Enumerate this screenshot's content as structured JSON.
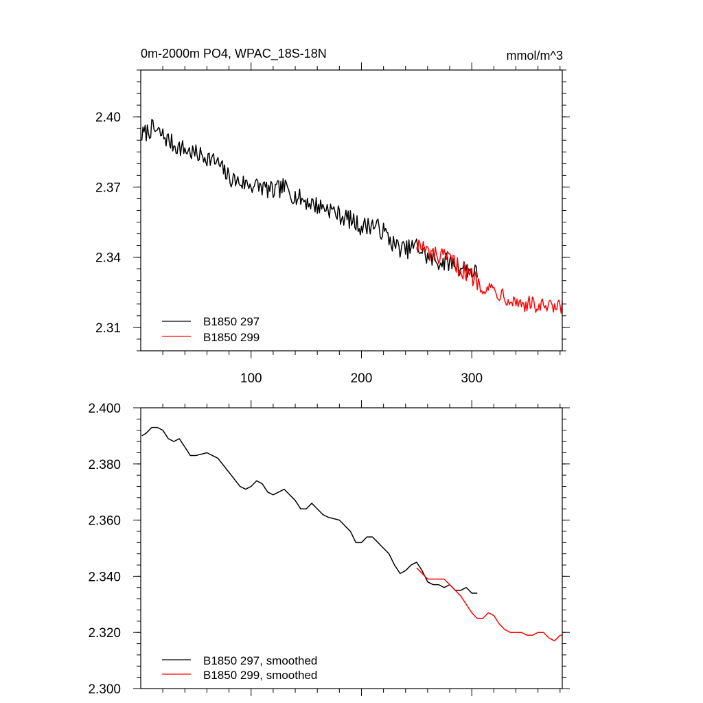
{
  "chart_data": [
    {
      "type": "line",
      "title": "0m-2000m PO4, WPAC_18S-18N",
      "units": "mmol/m^3",
      "xlim": [
        0,
        382
      ],
      "ylim": [
        2.3,
        2.42
      ],
      "xticks": [
        100,
        200,
        300
      ],
      "xtick_labels": [
        "100",
        "200",
        "300"
      ],
      "yticks": [
        2.31,
        2.34,
        2.37,
        2.4
      ],
      "ytick_labels": [
        "2.31",
        "2.34",
        "2.37",
        "2.40"
      ],
      "legend_position": "bottom-left",
      "series": [
        {
          "name": "B1850 297",
          "color": "#000000",
          "x_start": 1,
          "x_end": 305,
          "keypoints": [
            [
              1,
              2.392
            ],
            [
              10,
              2.395
            ],
            [
              20,
              2.392
            ],
            [
              30,
              2.388
            ],
            [
              40,
              2.386
            ],
            [
              50,
              2.384
            ],
            [
              60,
              2.383
            ],
            [
              70,
              2.38
            ],
            [
              80,
              2.374
            ],
            [
              90,
              2.372
            ],
            [
              100,
              2.371
            ],
            [
              110,
              2.37
            ],
            [
              120,
              2.368
            ],
            [
              130,
              2.37
            ],
            [
              140,
              2.366
            ],
            [
              150,
              2.364
            ],
            [
              160,
              2.362
            ],
            [
              170,
              2.361
            ],
            [
              180,
              2.358
            ],
            [
              190,
              2.356
            ],
            [
              200,
              2.353
            ],
            [
              210,
              2.354
            ],
            [
              220,
              2.351
            ],
            [
              230,
              2.345
            ],
            [
              240,
              2.343
            ],
            [
              250,
              2.345
            ],
            [
              260,
              2.34
            ],
            [
              270,
              2.338
            ],
            [
              280,
              2.338
            ],
            [
              290,
              2.336
            ],
            [
              300,
              2.334
            ],
            [
              305,
              2.333
            ]
          ],
          "noise_amplitude": 0.004
        },
        {
          "name": "B1850 299",
          "color": "#ff0000",
          "x_start": 250,
          "x_end": 382,
          "keypoints": [
            [
              250,
              2.346
            ],
            [
              260,
              2.342
            ],
            [
              270,
              2.34
            ],
            [
              280,
              2.339
            ],
            [
              290,
              2.335
            ],
            [
              300,
              2.332
            ],
            [
              310,
              2.328
            ],
            [
              320,
              2.326
            ],
            [
              330,
              2.324
            ],
            [
              340,
              2.321
            ],
            [
              350,
              2.32
            ],
            [
              360,
              2.319
            ],
            [
              370,
              2.318
            ],
            [
              382,
              2.318
            ]
          ],
          "noise_amplitude": 0.004
        }
      ]
    },
    {
      "type": "line",
      "title": "",
      "xlim": [
        0,
        382
      ],
      "ylim": [
        2.3,
        2.4
      ],
      "yticks": [
        2.3,
        2.32,
        2.34,
        2.36,
        2.38,
        2.4
      ],
      "ytick_labels": [
        "2.300",
        "2.320",
        "2.340",
        "2.360",
        "2.380",
        "2.400"
      ],
      "xticks": [
        100,
        200,
        300
      ],
      "legend_position": "bottom-left",
      "series": [
        {
          "name": "B1850 297, smoothed",
          "color": "#000000",
          "x_start": 1,
          "x_end": 305,
          "keypoints": [
            [
              1,
              2.39
            ],
            [
              5,
              2.391
            ],
            [
              10,
              2.393
            ],
            [
              15,
              2.393
            ],
            [
              20,
              2.392
            ],
            [
              25,
              2.389
            ],
            [
              30,
              2.388
            ],
            [
              35,
              2.389
            ],
            [
              40,
              2.386
            ],
            [
              45,
              2.383
            ],
            [
              50,
              2.383
            ],
            [
              60,
              2.384
            ],
            [
              70,
              2.382
            ],
            [
              80,
              2.377
            ],
            [
              90,
              2.372
            ],
            [
              95,
              2.371
            ],
            [
              100,
              2.372
            ],
            [
              105,
              2.374
            ],
            [
              110,
              2.373
            ],
            [
              115,
              2.37
            ],
            [
              120,
              2.369
            ],
            [
              125,
              2.37
            ],
            [
              130,
              2.371
            ],
            [
              135,
              2.369
            ],
            [
              140,
              2.367
            ],
            [
              145,
              2.364
            ],
            [
              150,
              2.364
            ],
            [
              155,
              2.366
            ],
            [
              160,
              2.364
            ],
            [
              165,
              2.362
            ],
            [
              170,
              2.361
            ],
            [
              180,
              2.36
            ],
            [
              185,
              2.358
            ],
            [
              190,
              2.356
            ],
            [
              195,
              2.352
            ],
            [
              200,
              2.352
            ],
            [
              205,
              2.354
            ],
            [
              210,
              2.354
            ],
            [
              215,
              2.352
            ],
            [
              220,
              2.35
            ],
            [
              225,
              2.348
            ],
            [
              230,
              2.344
            ],
            [
              235,
              2.341
            ],
            [
              240,
              2.342
            ],
            [
              245,
              2.344
            ],
            [
              250,
              2.345
            ],
            [
              255,
              2.342
            ],
            [
              260,
              2.338
            ],
            [
              265,
              2.337
            ],
            [
              270,
              2.337
            ],
            [
              275,
              2.336
            ],
            [
              280,
              2.337
            ],
            [
              285,
              2.335
            ],
            [
              290,
              2.335
            ],
            [
              295,
              2.336
            ],
            [
              300,
              2.334
            ],
            [
              305,
              2.334
            ]
          ]
        },
        {
          "name": "B1850 299, smoothed",
          "color": "#ff0000",
          "x_start": 250,
          "x_end": 382,
          "keypoints": [
            [
              250,
              2.343
            ],
            [
              255,
              2.341
            ],
            [
              260,
              2.339
            ],
            [
              265,
              2.339
            ],
            [
              270,
              2.339
            ],
            [
              275,
              2.339
            ],
            [
              280,
              2.337
            ],
            [
              285,
              2.335
            ],
            [
              290,
              2.333
            ],
            [
              295,
              2.33
            ],
            [
              300,
              2.327
            ],
            [
              305,
              2.325
            ],
            [
              310,
              2.325
            ],
            [
              315,
              2.327
            ],
            [
              320,
              2.326
            ],
            [
              325,
              2.323
            ],
            [
              330,
              2.321
            ],
            [
              335,
              2.32
            ],
            [
              340,
              2.32
            ],
            [
              345,
              2.32
            ],
            [
              350,
              2.319
            ],
            [
              355,
              2.319
            ],
            [
              360,
              2.32
            ],
            [
              365,
              2.32
            ],
            [
              370,
              2.318
            ],
            [
              375,
              2.317
            ],
            [
              380,
              2.319
            ]
          ]
        }
      ]
    }
  ]
}
